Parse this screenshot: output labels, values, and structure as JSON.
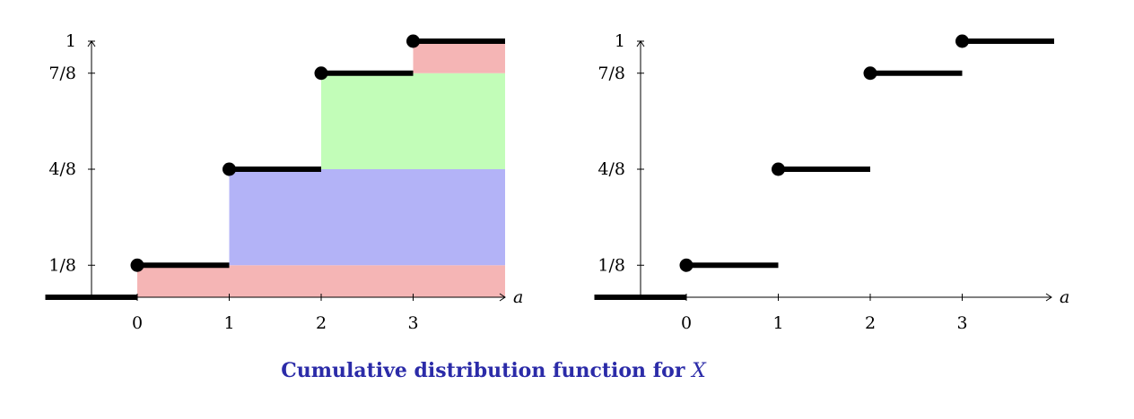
{
  "caption": {
    "text": "Cumulative distribution function for",
    "variable": "X"
  },
  "chart_data": [
    {
      "type": "step",
      "title": "",
      "xlabel": "a",
      "ylabel": "",
      "xlim": [
        -1,
        4
      ],
      "ylim": [
        0,
        1
      ],
      "x_ticks": [
        0,
        1,
        2,
        3
      ],
      "y_ticks": [
        {
          "value": 0.125,
          "label": "1/8"
        },
        {
          "value": 0.5,
          "label": "4/8"
        },
        {
          "value": 0.875,
          "label": "7/8"
        },
        {
          "value": 1,
          "label": "1"
        }
      ],
      "steps": [
        {
          "x_start": -1,
          "x_end": 0,
          "y": 0,
          "closed_start": false
        },
        {
          "x_start": 0,
          "x_end": 1,
          "y": 0.125,
          "closed_start": true
        },
        {
          "x_start": 1,
          "x_end": 2,
          "y": 0.5,
          "closed_start": true
        },
        {
          "x_start": 2,
          "x_end": 3,
          "y": 0.875,
          "closed_start": true
        },
        {
          "x_start": 3,
          "x_end": 4,
          "y": 1,
          "closed_start": true
        }
      ],
      "shaded_regions": [
        {
          "x_from": 0,
          "x_to": 4,
          "y_from": 0,
          "y_to": 0.125,
          "color": "#f5b5b5"
        },
        {
          "x_from": 1,
          "x_to": 4,
          "y_from": 0.125,
          "y_to": 0.5,
          "color": "#b3b3f7"
        },
        {
          "x_from": 2,
          "x_to": 4,
          "y_from": 0.5,
          "y_to": 0.875,
          "color": "#c2fdb8"
        },
        {
          "x_from": 3,
          "x_to": 4,
          "y_from": 0.875,
          "y_to": 1,
          "color": "#f5b5b5"
        }
      ],
      "grid": false
    },
    {
      "type": "step",
      "title": "",
      "xlabel": "a",
      "ylabel": "",
      "xlim": [
        -1,
        4
      ],
      "ylim": [
        0,
        1
      ],
      "x_ticks": [
        0,
        1,
        2,
        3
      ],
      "y_ticks": [
        {
          "value": 0.125,
          "label": "1/8"
        },
        {
          "value": 0.5,
          "label": "4/8"
        },
        {
          "value": 0.875,
          "label": "7/8"
        },
        {
          "value": 1,
          "label": "1"
        }
      ],
      "steps": [
        {
          "x_start": -1,
          "x_end": 0,
          "y": 0,
          "closed_start": false
        },
        {
          "x_start": 0,
          "x_end": 1,
          "y": 0.125,
          "closed_start": true
        },
        {
          "x_start": 1,
          "x_end": 2,
          "y": 0.5,
          "closed_start": true
        },
        {
          "x_start": 2,
          "x_end": 3,
          "y": 0.875,
          "closed_start": true
        },
        {
          "x_start": 3,
          "x_end": 4,
          "y": 1,
          "closed_start": true
        }
      ],
      "shaded_regions": [],
      "grid": false
    }
  ]
}
